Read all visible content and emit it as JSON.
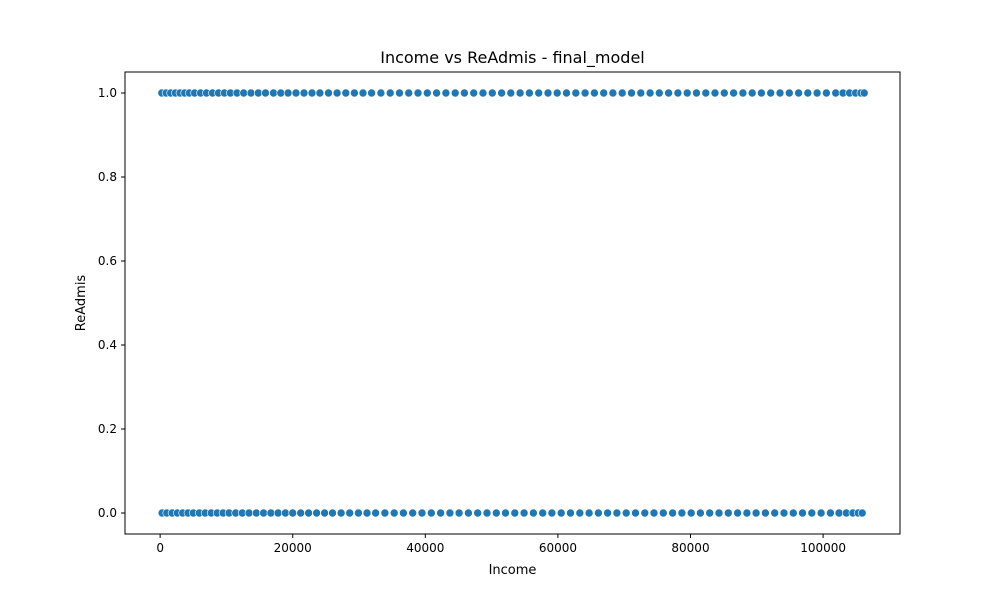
{
  "chart_data": {
    "type": "scatter",
    "title": "Income vs ReAdmis - final_model",
    "xlabel": "Income",
    "ylabel": "ReAdmis",
    "xlim": [
      -5300,
      111600
    ],
    "ylim": [
      -0.05,
      1.05
    ],
    "x_ticks": [
      0,
      20000,
      40000,
      60000,
      80000,
      100000
    ],
    "y_ticks": [
      0.0,
      0.2,
      0.4,
      0.6,
      0.8,
      1.0
    ],
    "x_tick_labels": [
      "0",
      "20000",
      "40000",
      "60000",
      "80000",
      "100000"
    ],
    "y_tick_labels": [
      "0.0",
      "0.2",
      "0.4",
      "0.6",
      "0.8",
      "1.0"
    ],
    "grid": false,
    "color": "#1f77b4",
    "series": [
      {
        "values_y": 1,
        "x": [
          250,
          900,
          1600,
          2300,
          3000,
          3700,
          4400,
          5200,
          6100,
          7000,
          7900,
          8800,
          9700,
          10600,
          11600,
          12600,
          13700,
          14800,
          15900,
          17100,
          18200,
          19300,
          20500,
          21700,
          22900,
          24100,
          25400,
          26700,
          28000,
          29300,
          30600,
          31900,
          33300,
          34700,
          36100,
          37500,
          38900,
          40300,
          41700,
          43100,
          44500,
          45900,
          47300,
          48700,
          50100,
          51500,
          52900,
          54300,
          55700,
          57100,
          58500,
          59900,
          61300,
          62700,
          64100,
          65500,
          66900,
          68300,
          69700,
          71100,
          72500,
          73900,
          75300,
          76700,
          78100,
          79500,
          80900,
          82300,
          83700,
          85100,
          86500,
          87900,
          89300,
          90700,
          92100,
          93500,
          94900,
          96300,
          97700,
          99100,
          100500,
          101900,
          103000,
          104000,
          104900,
          105700,
          106200
        ]
      },
      {
        "values_y": 0,
        "x": [
          300,
          1000,
          1800,
          2600,
          3400,
          4200,
          5000,
          5900,
          6800,
          7700,
          8600,
          9500,
          10400,
          11400,
          12400,
          13400,
          14500,
          15600,
          16700,
          17800,
          18900,
          20000,
          21200,
          22400,
          23600,
          24800,
          26000,
          27300,
          28600,
          29900,
          31200,
          32500,
          33900,
          35300,
          36700,
          38100,
          39500,
          40900,
          42300,
          43700,
          45100,
          46500,
          47900,
          49300,
          50700,
          52100,
          53500,
          54900,
          56300,
          57700,
          59100,
          60500,
          61900,
          63300,
          64700,
          66100,
          67500,
          68900,
          70300,
          71700,
          73100,
          74500,
          75900,
          77300,
          78700,
          80100,
          81500,
          82900,
          84300,
          85700,
          87100,
          88500,
          89900,
          91300,
          92700,
          94100,
          95500,
          96900,
          98300,
          99700,
          101100,
          102400,
          103500,
          104500,
          105300,
          105900
        ]
      }
    ]
  }
}
